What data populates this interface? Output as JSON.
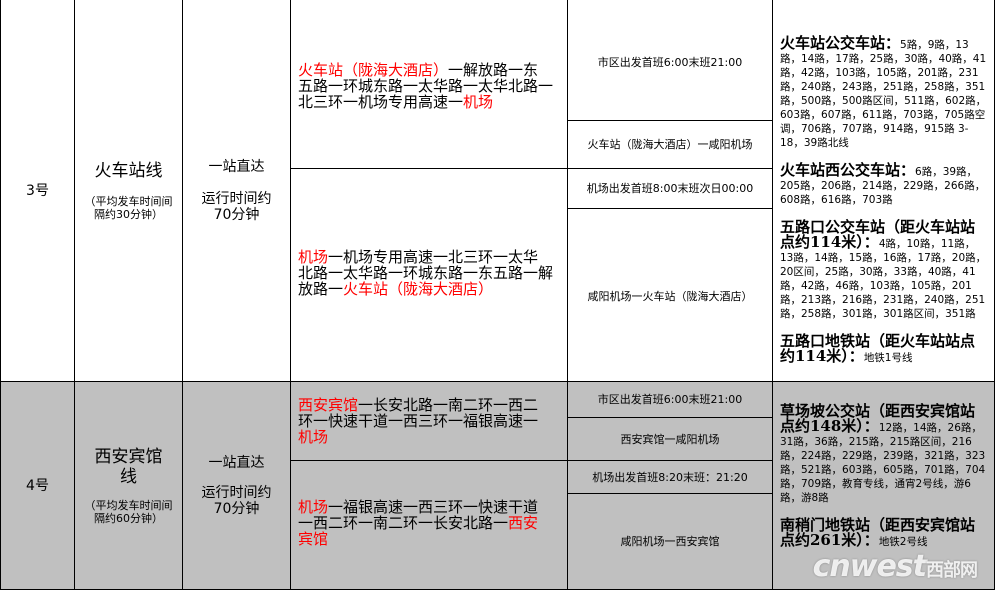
{
  "rows": [
    {
      "number": "3号",
      "line_name": "火车站线",
      "interval": "（平均发车时间间隔约30分钟）",
      "service": "一站直达",
      "duration": "运行时间约70分钟",
      "outbound_route": [
        {
          "text": "火车站（陇海大酒店）",
          "red": true
        },
        {
          "text": "一解放路一东五路一环城东路一太华路一太华北路一北三环一机场专用高速一",
          "red": false
        },
        {
          "text": "机场",
          "red": true
        }
      ],
      "inbound_route": [
        {
          "text": "机场",
          "red": true
        },
        {
          "text": "一机场专用高速一北三环一太华北路一太华路一环城东路一东五路一解放路一",
          "red": false
        },
        {
          "text": "火车站（陇海大酒店）",
          "red": true
        }
      ],
      "schedule": {
        "city_departure": "市区出发首班6:00末班21:00",
        "outbound_direction": "火车站（陇海大酒店）一咸阳机场",
        "airport_departure": "机场出发首班8:00末班次日00:00",
        "inbound_direction": "咸阳机场一火车站（陇海大酒店）"
      },
      "transfers": [
        {
          "station": "火车站公交车站：",
          "lines": "5路，9路，13路，14路，17路，25路，30路，40路，41路，42路，103路，105路，201路，231路，240路，243路，251路，258路，351路，500路，500路区间，511路，602路，603路，607路，611路，703路，705路空调，706路，707路，914路，915路 3-18，39路北线"
        },
        {
          "station": "火车站西公交车站：",
          "lines": "6路，39路，205路，206路，214路，229路，266路，608路，616路，703路"
        },
        {
          "station": "五路口公交车站（距火车站站点约114米）：",
          "lines": "4路，10路，11路，13路，14路，15路，16路，17路，20路，20区间，25路，30路，33路，40路，41路，42路，46路，103路，105路，201路，213路，216路，231路，240路，251路，258路，301路，301路区间，351路"
        },
        {
          "station": "五路口地铁站（距火车站站点约114米）：",
          "lines": "地铁1号线"
        }
      ]
    },
    {
      "number": "4号",
      "line_name": "西安宾馆线",
      "interval": "（平均发车时间间隔约60分钟）",
      "service": "一站直达",
      "duration": "运行时间约70分钟",
      "outbound_route": [
        {
          "text": "西安宾馆",
          "red": true
        },
        {
          "text": "一长安北路一南二环一西二环一快速干道一西三环一福银高速一",
          "red": false
        },
        {
          "text": "机场",
          "red": true
        }
      ],
      "inbound_route": [
        {
          "text": "机场",
          "red": true
        },
        {
          "text": "一福银高速一西三环一快速干道一西二环一南二环一长安北路一",
          "red": false
        },
        {
          "text": "西安宾馆",
          "red": true
        }
      ],
      "schedule": {
        "city_departure": "市区出发首班6:00末班21:00",
        "outbound_direction": "西安宾馆一咸阳机场",
        "airport_departure": "机场出发首班8:20末班：21:20",
        "inbound_direction": "咸阳机场一西安宾馆"
      },
      "transfers": [
        {
          "station": "草场坡公交站（距西安宾馆站点约148米）：",
          "lines": "12路，14路，26路，31路，36路，215路，215路区间，216路，224路，229路，239路，321路，323路，521路，603路，605路，701路，704路，709路，教育专线，通宵2号线，游6路，游8路"
        },
        {
          "station": "南稍门地铁站（距西安宾馆站点约261米）：",
          "lines": "地铁2号线"
        }
      ]
    }
  ],
  "watermark": {
    "latin": "cnwest",
    "chinese": "西部网"
  },
  "colors": {
    "highlight": "#ff0000",
    "row_alt_bg": "#c0c0c0"
  }
}
